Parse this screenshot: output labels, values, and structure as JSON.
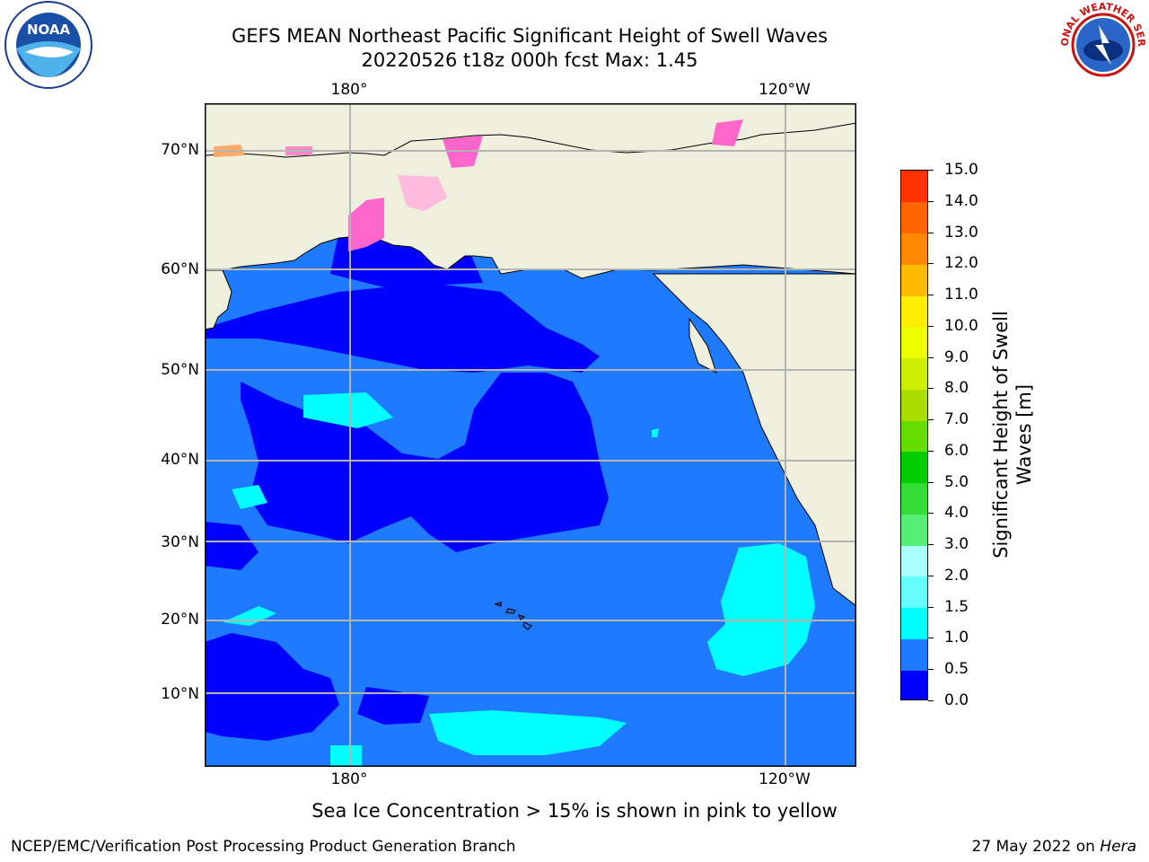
{
  "title": {
    "line1": "GEFS MEAN Northeast Pacific Significant Height of Swell Waves",
    "line2": "20220526 t18z 000h fcst   Max: 1.45"
  },
  "map": {
    "lat_labels": [
      "70°N",
      "60°N",
      "50°N",
      "40°N",
      "30°N",
      "20°N",
      "10°N"
    ],
    "lon_labels_top": [
      "180°",
      "120°W"
    ],
    "lon_labels_bottom": [
      "180°",
      "120°W"
    ]
  },
  "colorbar": {
    "title": "Significant Height of Swell Waves [m]",
    "ticks": [
      "15.0",
      "14.0",
      "13.0",
      "12.0",
      "11.0",
      "10.0",
      "9.0",
      "8.0",
      "7.0",
      "6.0",
      "5.0",
      "4.0",
      "3.0",
      "2.0",
      "1.5",
      "1.0",
      "0.5",
      "0.0"
    ],
    "colors": [
      "#0000ff",
      "#1e7bff",
      "#00ffff",
      "#66ffff",
      "#aaffff",
      "#55ee77",
      "#33dd33",
      "#00cc00",
      "#66dd00",
      "#aadd00",
      "#ccee00",
      "#eeff00",
      "#ffee00",
      "#ffbb00",
      "#ff8800",
      "#ff6600",
      "#ff3300"
    ]
  },
  "legend_note": "Sea Ice Concentration > 15% is shown in pink to yellow",
  "footer": {
    "left": "NCEP/EMC/Verification Post Processing Product Generation Branch",
    "right_prefix": "27 May 2022 on ",
    "right_host": "Hera"
  },
  "logos": {
    "left": "NOAA",
    "right": "NATIONAL WEATHER SERVICE"
  },
  "colors": {
    "land": "#efefdd",
    "ocean_dark": "#0000ff",
    "ocean_mid": "#1e7bff",
    "ocean_light": "#00ffff",
    "ice": "#ff66cc"
  }
}
